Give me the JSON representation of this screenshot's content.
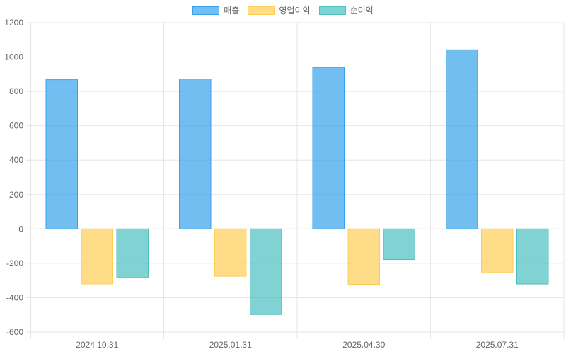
{
  "chart_data": {
    "type": "bar",
    "categories": [
      "2024.10.31",
      "2025.01.31",
      "2025.04.30",
      "2025.07.31"
    ],
    "series": [
      {
        "name": "매출",
        "values": [
          868,
          872,
          940,
          1042
        ],
        "color": "#36A2EB"
      },
      {
        "name": "영업이익",
        "values": [
          -320,
          -275,
          -322,
          -255
        ],
        "color": "#FFCD56"
      },
      {
        "name": "순이익",
        "values": [
          -283,
          -498,
          -178,
          -320
        ],
        "color": "#4BC0C0"
      }
    ],
    "ylim": [
      -600,
      1200
    ],
    "yticks": [
      -600,
      -400,
      -200,
      0,
      200,
      400,
      600,
      800,
      1000,
      1200
    ],
    "grid": true,
    "legend_position": "top-center"
  }
}
